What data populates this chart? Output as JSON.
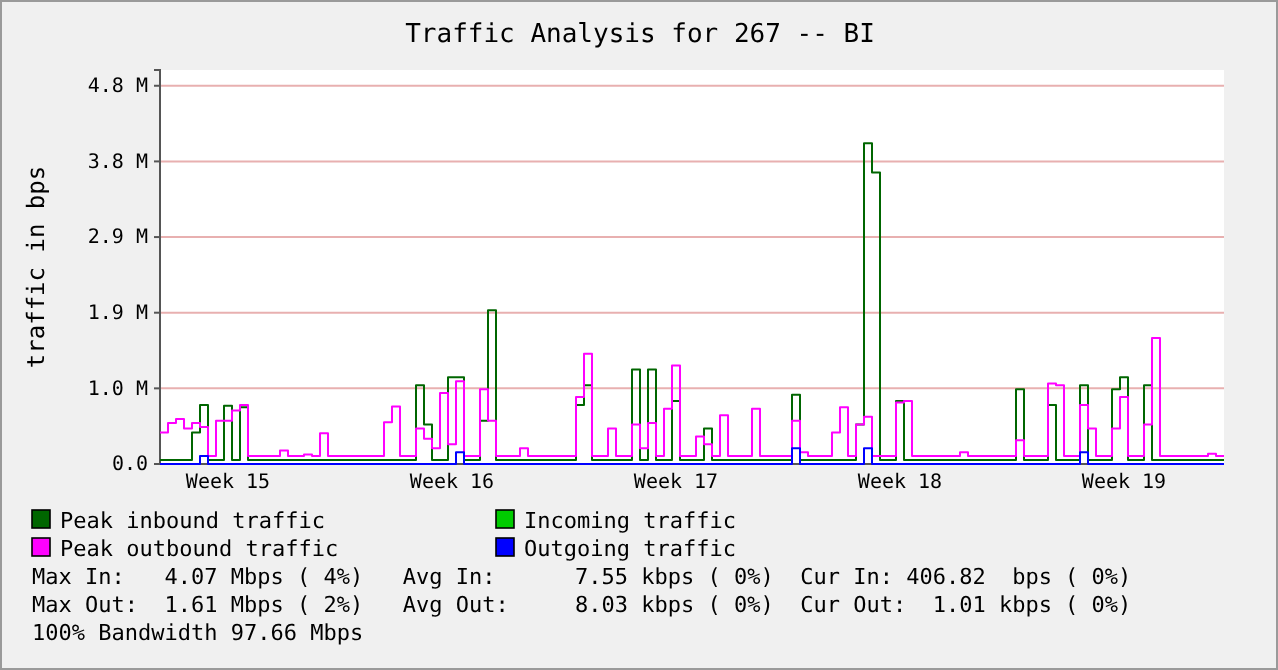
{
  "chart_data": {
    "type": "step",
    "title": "Traffic Analysis for 267 -- BI",
    "ylabel": "traffic in bps",
    "categories": [
      null,
      null,
      null,
      null,
      null,
      null,
      null,
      null,
      "Week 15",
      null,
      null,
      null,
      null,
      null,
      null,
      null,
      null,
      null,
      null,
      null,
      null,
      null,
      null,
      null,
      null,
      null,
      null,
      null,
      null,
      null,
      null,
      null,
      null,
      null,
      null,
      null,
      "Week 16",
      null,
      null,
      null,
      null,
      null,
      null,
      null,
      null,
      null,
      null,
      null,
      null,
      null,
      null,
      null,
      null,
      null,
      null,
      null,
      null,
      null,
      null,
      null,
      null,
      null,
      null,
      null,
      "Week 17",
      null,
      null,
      null,
      null,
      null,
      null,
      null,
      null,
      null,
      null,
      null,
      null,
      null,
      null,
      null,
      null,
      null,
      null,
      null,
      null,
      null,
      null,
      null,
      null,
      null,
      null,
      null,
      "Week 18",
      null,
      null,
      null,
      null,
      null,
      null,
      null,
      null,
      null,
      null,
      null,
      null,
      null,
      null,
      null,
      null,
      null,
      null,
      null,
      null,
      null,
      null,
      null,
      null,
      null,
      null,
      null,
      "Week 19",
      null,
      null,
      null,
      null,
      null,
      null,
      null,
      null,
      null,
      null,
      null,
      null
    ],
    "ylim": [
      0,
      5.0
    ],
    "yticks": [
      {
        "value": 0,
        "label": "0.0"
      },
      {
        "value": 0.96,
        "label": "1.0 M"
      },
      {
        "value": 1.92,
        "label": "1.9 M"
      },
      {
        "value": 2.88,
        "label": "2.9 M"
      },
      {
        "value": 3.84,
        "label": "3.8 M"
      },
      {
        "value": 4.8,
        "label": "4.8 M"
      }
    ],
    "grid": "y",
    "legend": "bottom",
    "series": [
      {
        "name": "Peak inbound traffic",
        "color": "#006600",
        "values": [
          0.05,
          0.05,
          0.05,
          0.05,
          0.4,
          0.75,
          0.05,
          0.05,
          0.74,
          0.05,
          0.72,
          0.05,
          0.05,
          0.05,
          0.05,
          0.05,
          0.05,
          0.05,
          0.05,
          0.05,
          0.05,
          0.05,
          0.05,
          0.05,
          0.05,
          0.05,
          0.05,
          0.05,
          0.05,
          0.05,
          0.05,
          0.05,
          1.0,
          0.5,
          0.05,
          0.05,
          1.1,
          1.1,
          0.05,
          0.05,
          0.55,
          1.95,
          0.05,
          0.05,
          0.05,
          0.05,
          0.05,
          0.05,
          0.05,
          0.05,
          0.05,
          0.05,
          0.75,
          1.0,
          0.05,
          0.05,
          0.05,
          0.05,
          0.05,
          1.2,
          0.05,
          1.2,
          0.05,
          0.05,
          0.8,
          0.05,
          0.05,
          0.05,
          0.45,
          0.05,
          0.05,
          0.05,
          0.05,
          0.05,
          0.05,
          0.05,
          0.05,
          0.05,
          0.05,
          0.88,
          0.05,
          0.05,
          0.05,
          0.05,
          0.05,
          0.05,
          0.05,
          0.5,
          4.07,
          3.7,
          0.05,
          0.05,
          0.8,
          0.05,
          0.05,
          0.05,
          0.05,
          0.05,
          0.05,
          0.05,
          0.05,
          0.05,
          0.05,
          0.05,
          0.05,
          0.05,
          0.05,
          0.95,
          0.05,
          0.05,
          0.05,
          0.75,
          0.05,
          0.05,
          0.05,
          1.0,
          0.05,
          0.05,
          0.05,
          0.95,
          1.1,
          0.05,
          0.05,
          1.0,
          0.05,
          0.05,
          0.05,
          0.05,
          0.05,
          0.05,
          0.05,
          0.05,
          0.05
        ]
      },
      {
        "name": "Incoming traffic",
        "color": "#00cc00",
        "values": [
          null,
          null,
          null,
          null,
          null,
          null,
          null,
          null,
          null,
          null,
          null,
          null,
          null,
          null,
          null,
          null,
          null,
          null,
          null,
          null,
          null,
          null,
          null,
          null,
          null,
          null,
          null,
          null,
          null,
          null,
          null,
          null,
          null,
          null,
          null,
          null,
          null,
          null,
          null,
          null,
          null,
          null,
          null,
          null,
          null,
          null,
          null,
          null,
          null,
          null,
          null,
          null,
          null,
          null,
          null,
          null,
          null,
          null,
          null,
          null,
          null,
          null,
          null,
          null,
          null,
          null,
          null,
          null,
          null,
          null,
          null,
          null,
          null,
          null,
          null,
          null,
          null,
          null,
          null,
          null,
          null,
          null,
          null,
          null,
          null,
          null,
          null,
          null,
          null,
          null,
          null,
          null,
          null,
          null,
          null,
          null,
          null,
          null,
          null,
          null,
          null,
          null,
          null,
          null,
          null,
          null,
          null,
          null,
          null,
          null,
          null,
          null,
          null,
          null,
          null,
          null,
          null,
          null,
          null,
          null,
          null,
          null,
          null,
          null,
          null,
          null,
          null,
          null,
          null,
          null,
          null,
          null,
          null
        ]
      },
      {
        "name": "Peak outbound traffic",
        "color": "#ff00ff",
        "values": [
          0.4,
          0.52,
          0.57,
          0.45,
          0.52,
          0.47,
          0.1,
          0.55,
          0.55,
          0.68,
          0.75,
          0.1,
          0.1,
          0.1,
          0.1,
          0.17,
          0.1,
          0.1,
          0.12,
          0.1,
          0.39,
          0.1,
          0.1,
          0.1,
          0.1,
          0.1,
          0.1,
          0.1,
          0.53,
          0.73,
          0.1,
          0.1,
          0.45,
          0.32,
          0.2,
          0.9,
          0.25,
          1.05,
          0.1,
          0.1,
          0.95,
          0.55,
          0.1,
          0.1,
          0.1,
          0.2,
          0.1,
          0.1,
          0.1,
          0.1,
          0.1,
          0.1,
          0.85,
          1.4,
          0.1,
          0.1,
          0.45,
          0.1,
          0.1,
          0.5,
          0.2,
          0.52,
          0.1,
          0.7,
          1.25,
          0.1,
          0.1,
          0.35,
          0.25,
          0.1,
          0.62,
          0.1,
          0.1,
          0.1,
          0.7,
          0.1,
          0.1,
          0.1,
          0.1,
          0.55,
          0.15,
          0.1,
          0.1,
          0.1,
          0.4,
          0.72,
          0.1,
          0.5,
          0.6,
          0.1,
          0.1,
          0.1,
          0.78,
          0.8,
          0.1,
          0.1,
          0.1,
          0.1,
          0.1,
          0.1,
          0.15,
          0.1,
          0.1,
          0.1,
          0.1,
          0.1,
          0.1,
          0.3,
          0.1,
          0.1,
          0.1,
          1.02,
          1.0,
          0.1,
          0.1,
          0.75,
          0.45,
          0.1,
          0.1,
          0.45,
          0.85,
          0.1,
          0.1,
          0.5,
          1.6,
          0.1,
          0.1,
          0.1,
          0.1,
          0.1,
          0.1,
          0.13,
          0.1
        ]
      },
      {
        "name": "Outgoing traffic",
        "color": "#0000ff",
        "values": [
          0,
          0,
          0,
          0,
          0,
          0.1,
          0,
          0,
          0,
          0,
          0,
          0,
          0,
          0,
          0,
          0,
          0,
          0,
          0,
          0,
          0,
          0,
          0,
          0,
          0,
          0,
          0,
          0,
          0,
          0,
          0,
          0,
          0,
          0,
          0,
          0,
          0,
          0.15,
          0,
          0,
          0,
          0,
          0,
          0,
          0,
          0,
          0,
          0,
          0,
          0,
          0,
          0,
          0,
          0,
          0,
          0,
          0,
          0,
          0,
          0,
          0,
          0,
          0,
          0,
          0,
          0,
          0,
          0,
          0,
          0,
          0,
          0,
          0,
          0,
          0,
          0,
          0,
          0,
          0,
          0.2,
          0,
          0,
          0,
          0,
          0,
          0,
          0,
          0,
          0.2,
          0,
          0,
          0,
          0,
          0,
          0,
          0,
          0,
          0,
          0,
          0,
          0,
          0,
          0,
          0,
          0,
          0,
          0,
          0,
          0,
          0,
          0,
          0,
          0,
          0,
          0,
          0.15,
          0,
          0,
          0,
          0,
          0,
          0,
          0,
          0,
          0,
          0,
          0,
          0,
          0,
          0,
          0,
          0,
          0
        ]
      }
    ],
    "annotations": [
      "Max In:   4.07 Mbps ( 4%)   Avg In:      7.55 kbps ( 0%)  Cur In: 406.82  bps ( 0%)",
      "Max Out:  1.61 Mbps ( 2%)   Avg Out:     8.03 kbps ( 0%)  Cur Out:  1.01 kbps ( 0%)",
      "100% Bandwidth 97.66 Mbps"
    ]
  }
}
